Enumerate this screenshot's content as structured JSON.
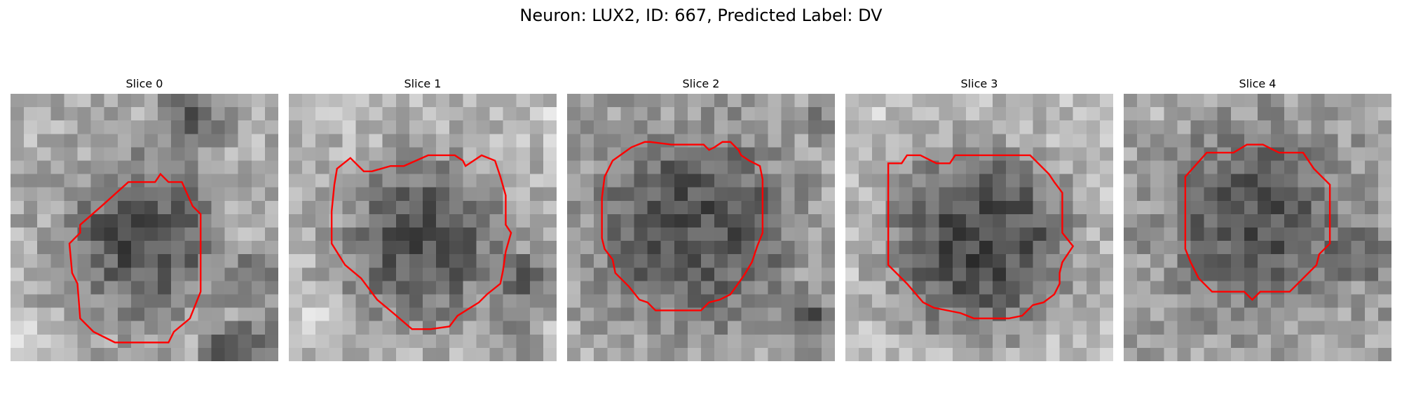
{
  "figure": {
    "title": "Neuron: LUX2, ID: 667, Predicted Label: DV"
  },
  "colors": {
    "contour": "#ff0000",
    "background": "#ffffff"
  },
  "panels": [
    {
      "title": "Slice 0",
      "contour": [
        [
          6.8,
          8.4
        ],
        [
          8.8,
          6.6
        ],
        [
          10.8,
          6.6
        ],
        [
          11.2,
          6.0
        ],
        [
          11.8,
          6.6
        ],
        [
          12.8,
          6.6
        ],
        [
          13.6,
          8.4
        ],
        [
          14.2,
          9.0
        ],
        [
          14.2,
          14.8
        ],
        [
          13.4,
          16.8
        ],
        [
          12.2,
          17.8
        ],
        [
          11.8,
          18.6
        ],
        [
          10.0,
          18.6
        ],
        [
          7.8,
          18.6
        ],
        [
          6.2,
          17.8
        ],
        [
          5.2,
          16.8
        ],
        [
          5.0,
          14.2
        ],
        [
          4.6,
          13.4
        ],
        [
          4.4,
          11.2
        ],
        [
          5.2,
          10.4
        ],
        [
          5.2,
          9.8
        ]
      ],
      "texture": {
        "seed": 11,
        "center": [
          10.0,
          10.8
        ],
        "radius": 4.8,
        "inner": 70,
        "outer": 175,
        "blobs": [
          [
            18,
            14,
            3,
            -70
          ],
          [
            16,
            19,
            2.5,
            -110
          ],
          [
            19,
            19,
            3,
            -90
          ],
          [
            12,
            1,
            2,
            -60
          ],
          [
            14,
            2,
            3,
            -80
          ],
          [
            1,
            18,
            2,
            40
          ],
          [
            17,
            10,
            3,
            30
          ]
        ]
      }
    },
    {
      "title": "Slice 1",
      "contour": [
        [
          3.6,
          5.6
        ],
        [
          4.6,
          4.8
        ],
        [
          5.6,
          5.8
        ],
        [
          6.2,
          5.8
        ],
        [
          7.6,
          5.4
        ],
        [
          8.6,
          5.4
        ],
        [
          10.4,
          4.6
        ],
        [
          11.8,
          4.6
        ],
        [
          12.4,
          4.6
        ],
        [
          13.0,
          5.0
        ],
        [
          13.2,
          5.4
        ],
        [
          14.4,
          4.6
        ],
        [
          15.4,
          5.0
        ],
        [
          15.8,
          6.2
        ],
        [
          16.2,
          7.6
        ],
        [
          16.2,
          9.8
        ],
        [
          16.6,
          10.4
        ],
        [
          16.2,
          11.8
        ],
        [
          16.0,
          13.2
        ],
        [
          15.8,
          14.2
        ],
        [
          14.8,
          15.0
        ],
        [
          14.2,
          15.6
        ],
        [
          12.6,
          16.6
        ],
        [
          12.0,
          17.4
        ],
        [
          10.6,
          17.6
        ],
        [
          9.2,
          17.6
        ],
        [
          7.8,
          16.4
        ],
        [
          6.6,
          15.4
        ],
        [
          5.4,
          13.8
        ],
        [
          4.2,
          12.8
        ],
        [
          3.2,
          11.2
        ],
        [
          3.2,
          8.8
        ],
        [
          3.4,
          6.8
        ]
      ],
      "texture": {
        "seed": 23,
        "center": [
          10.0,
          11.0
        ],
        "radius": 5.4,
        "inner": 80,
        "outer": 185,
        "blobs": [
          [
            18,
            14,
            3,
            -90
          ],
          [
            17,
            18,
            2.5,
            -70
          ],
          [
            1,
            1,
            3,
            10
          ],
          [
            19,
            2,
            2,
            30
          ],
          [
            2,
            17,
            3,
            30
          ]
        ]
      }
    },
    {
      "title": "Slice 2",
      "contour": [
        [
          3.4,
          5.0
        ],
        [
          4.8,
          4.0
        ],
        [
          5.8,
          3.6
        ],
        [
          6.2,
          3.6
        ],
        [
          7.8,
          3.8
        ],
        [
          8.6,
          3.8
        ],
        [
          10.2,
          3.8
        ],
        [
          10.6,
          4.2
        ],
        [
          11.0,
          4.0
        ],
        [
          11.6,
          3.6
        ],
        [
          12.2,
          3.6
        ],
        [
          12.8,
          4.2
        ],
        [
          13.0,
          4.6
        ],
        [
          13.6,
          5.0
        ],
        [
          14.4,
          5.4
        ],
        [
          14.6,
          6.4
        ],
        [
          14.6,
          9.0
        ],
        [
          14.6,
          10.4
        ],
        [
          14.2,
          11.4
        ],
        [
          13.8,
          12.6
        ],
        [
          13.2,
          13.6
        ],
        [
          12.2,
          15.0
        ],
        [
          11.4,
          15.4
        ],
        [
          10.6,
          15.6
        ],
        [
          10.0,
          16.2
        ],
        [
          8.2,
          16.2
        ],
        [
          6.6,
          16.2
        ],
        [
          6.0,
          15.6
        ],
        [
          5.4,
          15.4
        ],
        [
          4.6,
          14.4
        ],
        [
          3.6,
          13.4
        ],
        [
          3.4,
          12.4
        ],
        [
          2.8,
          11.6
        ],
        [
          2.6,
          10.8
        ],
        [
          2.6,
          7.8
        ],
        [
          2.8,
          6.2
        ]
      ],
      "texture": {
        "seed": 37,
        "center": [
          9.6,
          10.0
        ],
        "radius": 6.4,
        "inner": 80,
        "outer": 165,
        "blobs": [
          [
            18,
            17,
            3,
            -90
          ],
          [
            19,
            2,
            2,
            -60
          ],
          [
            1,
            20,
            2,
            20
          ]
        ]
      }
    },
    {
      "title": "Slice 3",
      "contour": [
        [
          3.2,
          5.2
        ],
        [
          4.2,
          5.2
        ],
        [
          4.6,
          4.6
        ],
        [
          5.6,
          4.6
        ],
        [
          6.8,
          5.2
        ],
        [
          7.8,
          5.2
        ],
        [
          8.2,
          4.6
        ],
        [
          9.0,
          4.6
        ],
        [
          11.4,
          4.6
        ],
        [
          12.4,
          4.6
        ],
        [
          13.8,
          4.6
        ],
        [
          14.4,
          5.2
        ],
        [
          15.2,
          6.0
        ],
        [
          15.6,
          6.6
        ],
        [
          16.2,
          7.4
        ],
        [
          16.2,
          9.0
        ],
        [
          16.2,
          10.4
        ],
        [
          17.0,
          11.4
        ],
        [
          16.2,
          12.6
        ],
        [
          16.0,
          13.4
        ],
        [
          16.0,
          14.2
        ],
        [
          15.6,
          15.0
        ],
        [
          14.8,
          15.6
        ],
        [
          14.0,
          15.8
        ],
        [
          13.2,
          16.6
        ],
        [
          12.2,
          16.8
        ],
        [
          11.0,
          16.8
        ],
        [
          9.6,
          16.8
        ],
        [
          8.6,
          16.4
        ],
        [
          6.6,
          16.0
        ],
        [
          5.8,
          15.6
        ],
        [
          4.6,
          14.2
        ],
        [
          3.2,
          12.8
        ],
        [
          3.2,
          11.2
        ],
        [
          3.2,
          9.0
        ],
        [
          3.2,
          6.8
        ]
      ],
      "texture": {
        "seed": 53,
        "center": [
          10.0,
          11.0
        ],
        "radius": 6.4,
        "inner": 70,
        "outer": 195,
        "blobs": [
          [
            1,
            1,
            3,
            15
          ],
          [
            19,
            19,
            2,
            15
          ]
        ]
      }
    },
    {
      "title": "Slice 4",
      "contour": [
        [
          4.6,
          6.2
        ],
        [
          6.2,
          4.4
        ],
        [
          6.6,
          4.4
        ],
        [
          8.2,
          4.4
        ],
        [
          9.2,
          3.8
        ],
        [
          10.4,
          3.8
        ],
        [
          11.6,
          4.4
        ],
        [
          13.4,
          4.4
        ],
        [
          14.2,
          5.6
        ],
        [
          15.4,
          6.8
        ],
        [
          15.4,
          7.2
        ],
        [
          15.4,
          9.6
        ],
        [
          15.4,
          11.2
        ],
        [
          14.6,
          12.0
        ],
        [
          14.4,
          12.8
        ],
        [
          13.4,
          13.8
        ],
        [
          12.4,
          14.8
        ],
        [
          11.6,
          14.8
        ],
        [
          10.2,
          14.8
        ],
        [
          9.6,
          15.4
        ],
        [
          9.0,
          14.8
        ],
        [
          8.2,
          14.8
        ],
        [
          7.6,
          14.8
        ],
        [
          6.6,
          14.8
        ],
        [
          5.6,
          13.8
        ],
        [
          5.0,
          12.6
        ],
        [
          4.6,
          11.6
        ],
        [
          4.6,
          9.6
        ],
        [
          4.6,
          7.6
        ],
        [
          4.6,
          6.8
        ]
      ],
      "texture": {
        "seed": 71,
        "center": [
          10.0,
          9.4
        ],
        "radius": 5.4,
        "inner": 80,
        "outer": 160,
        "blobs": [
          [
            18,
            12,
            3,
            -60
          ],
          [
            2,
            2,
            2,
            20
          ]
        ]
      }
    }
  ]
}
